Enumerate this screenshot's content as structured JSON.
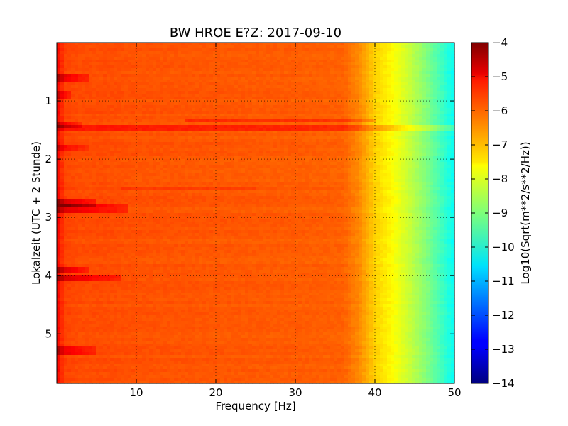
{
  "chart_data": {
    "type": "heatmap",
    "title": "BW HROE E?Z: 2017-09-10",
    "xlabel": "Frequency [Hz]",
    "ylabel": "Lokalzeit (UTC + 2 Stunde)",
    "colorbar_label": "Log10(Sqrt(m**2/s**2/Hz))",
    "xlim": [
      0,
      50
    ],
    "ylim": [
      5.85,
      0
    ],
    "x_ticks": [
      10,
      20,
      30,
      40,
      50
    ],
    "y_ticks": [
      1,
      2,
      3,
      4,
      5
    ],
    "colorbar_range": [
      -14,
      -4
    ],
    "colorbar_ticks": [
      -4,
      -5,
      -6,
      -7,
      -8,
      -9,
      -10,
      -11,
      -12,
      -13,
      -14
    ],
    "colormap": "jet",
    "grid": true,
    "spectrum_profile": {
      "frequency_hz": [
        0,
        1,
        3,
        6,
        10,
        20,
        30,
        36,
        38,
        40,
        42,
        44,
        46,
        48,
        50
      ],
      "log10_asd": [
        -5.2,
        -5.9,
        -6.0,
        -6.0,
        -6.05,
        -6.1,
        -6.15,
        -6.2,
        -6.6,
        -7.3,
        -7.7,
        -8.2,
        -8.8,
        -9.5,
        -10.2
      ]
    },
    "low_frequency_bursts": [
      {
        "time": 0.6,
        "strength": 0.9,
        "f_extent_hz": 4
      },
      {
        "time": 0.9,
        "strength": 0.6,
        "f_extent_hz": 2
      },
      {
        "time": 1.42,
        "strength": 0.8,
        "f_extent_hz": 3
      },
      {
        "time": 1.8,
        "strength": 0.6,
        "f_extent_hz": 4
      },
      {
        "time": 2.75,
        "strength": 1.0,
        "f_extent_hz": 5
      },
      {
        "time": 2.85,
        "strength": 1.0,
        "f_extent_hz": 9
      },
      {
        "time": 3.9,
        "strength": 1.0,
        "f_extent_hz": 4
      },
      {
        "time": 4.05,
        "strength": 1.0,
        "f_extent_hz": 8
      },
      {
        "time": 5.28,
        "strength": 0.8,
        "f_extent_hz": 5
      }
    ],
    "broadband_lines": [
      {
        "time": 1.33,
        "f_from_hz": 16,
        "f_to_hz": 40,
        "strength": 0.8
      },
      {
        "time": 1.47,
        "f_from_hz": 0,
        "f_to_hz": 50,
        "strength": 0.9
      },
      {
        "time": 2.52,
        "f_from_hz": 8,
        "f_to_hz": 25,
        "strength": 0.35
      }
    ]
  }
}
